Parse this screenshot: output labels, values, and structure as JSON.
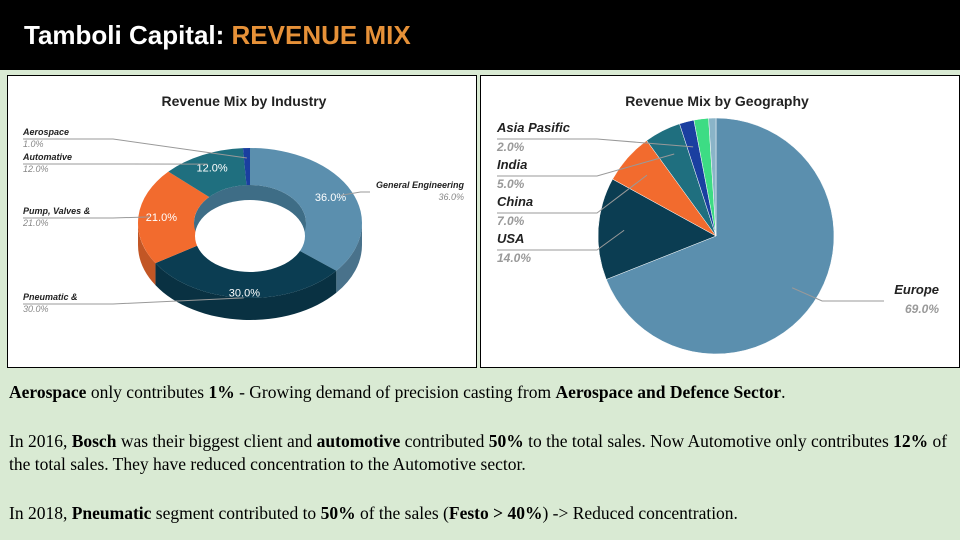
{
  "title": {
    "prefix": "Tamboli Capital: ",
    "accent": "REVENUE MIX",
    "accent_color": "#e69138"
  },
  "chart_data": [
    {
      "type": "pie",
      "variant": "3d-donut",
      "title": "Revenue Mix by Industry",
      "slices": [
        {
          "label": "General Engineering",
          "value": 36.0,
          "display": "36.0%",
          "color": "#5b8fae"
        },
        {
          "label": "Pneumatic &",
          "value": 30.0,
          "display": "30.0%",
          "color": "#0b3d52"
        },
        {
          "label": "Pump, Valves &",
          "value": 21.0,
          "display": "21.0%",
          "color": "#f26b2e"
        },
        {
          "label": "Automative",
          "value": 12.0,
          "display": "12.0%",
          "color": "#1f6f7f"
        },
        {
          "label": "Aerospace",
          "value": 1.0,
          "display": "1.0%",
          "color": "#1a3fa0"
        }
      ]
    },
    {
      "type": "pie",
      "title": "Revenue Mix by Geography",
      "slices": [
        {
          "label": "Europe",
          "value": 69.0,
          "display": "69.0%",
          "color": "#5b8fae"
        },
        {
          "label": "USA",
          "value": 14.0,
          "display": "14.0%",
          "color": "#0b3d52"
        },
        {
          "label": "China",
          "value": 7.0,
          "display": "7.0%",
          "color": "#f26b2e"
        },
        {
          "label": "India",
          "value": 5.0,
          "display": "5.0%",
          "color": "#1f6f7f"
        },
        {
          "label": "Asia Pasific",
          "value": 2.0,
          "display": "2.0%",
          "color": "#1a3fa0"
        },
        {
          "label": "",
          "value": 2.0,
          "display": "",
          "color": "#3ddc84"
        },
        {
          "label": "",
          "value": 1.0,
          "display": "",
          "color": "#8ab4c8"
        }
      ]
    }
  ],
  "text": {
    "p1": [
      {
        "t": "Aerospace",
        "b": true
      },
      {
        "t": " only contributes ",
        "b": false
      },
      {
        "t": "1%",
        "b": true
      },
      {
        "t": " - Growing demand of precision casting from ",
        "b": false
      },
      {
        "t": "Aerospace and Defence Sector",
        "b": true
      },
      {
        "t": ".",
        "b": false
      }
    ],
    "p2": [
      {
        "t": "In 2016, ",
        "b": false
      },
      {
        "t": "Bosch",
        "b": true
      },
      {
        "t": " was their biggest client and ",
        "b": false
      },
      {
        "t": "automotive",
        "b": true
      },
      {
        "t": " contributed ",
        "b": false
      },
      {
        "t": "50%",
        "b": true
      },
      {
        "t": " to the total sales. Now Automotive only contributes ",
        "b": false
      },
      {
        "t": "12%",
        "b": true
      },
      {
        "t": " of the total sales. They have reduced concentration to the Automotive sector.",
        "b": false
      }
    ],
    "p3": [
      {
        "t": "In 2018, ",
        "b": false
      },
      {
        "t": "Pneumatic",
        "b": true
      },
      {
        "t": " segment contributed to ",
        "b": false
      },
      {
        "t": "50%",
        "b": true
      },
      {
        "t": " of the sales (",
        "b": false
      },
      {
        "t": "Festo > 40%",
        "b": true
      },
      {
        "t": ") -> Reduced concentration.",
        "b": false
      }
    ]
  }
}
